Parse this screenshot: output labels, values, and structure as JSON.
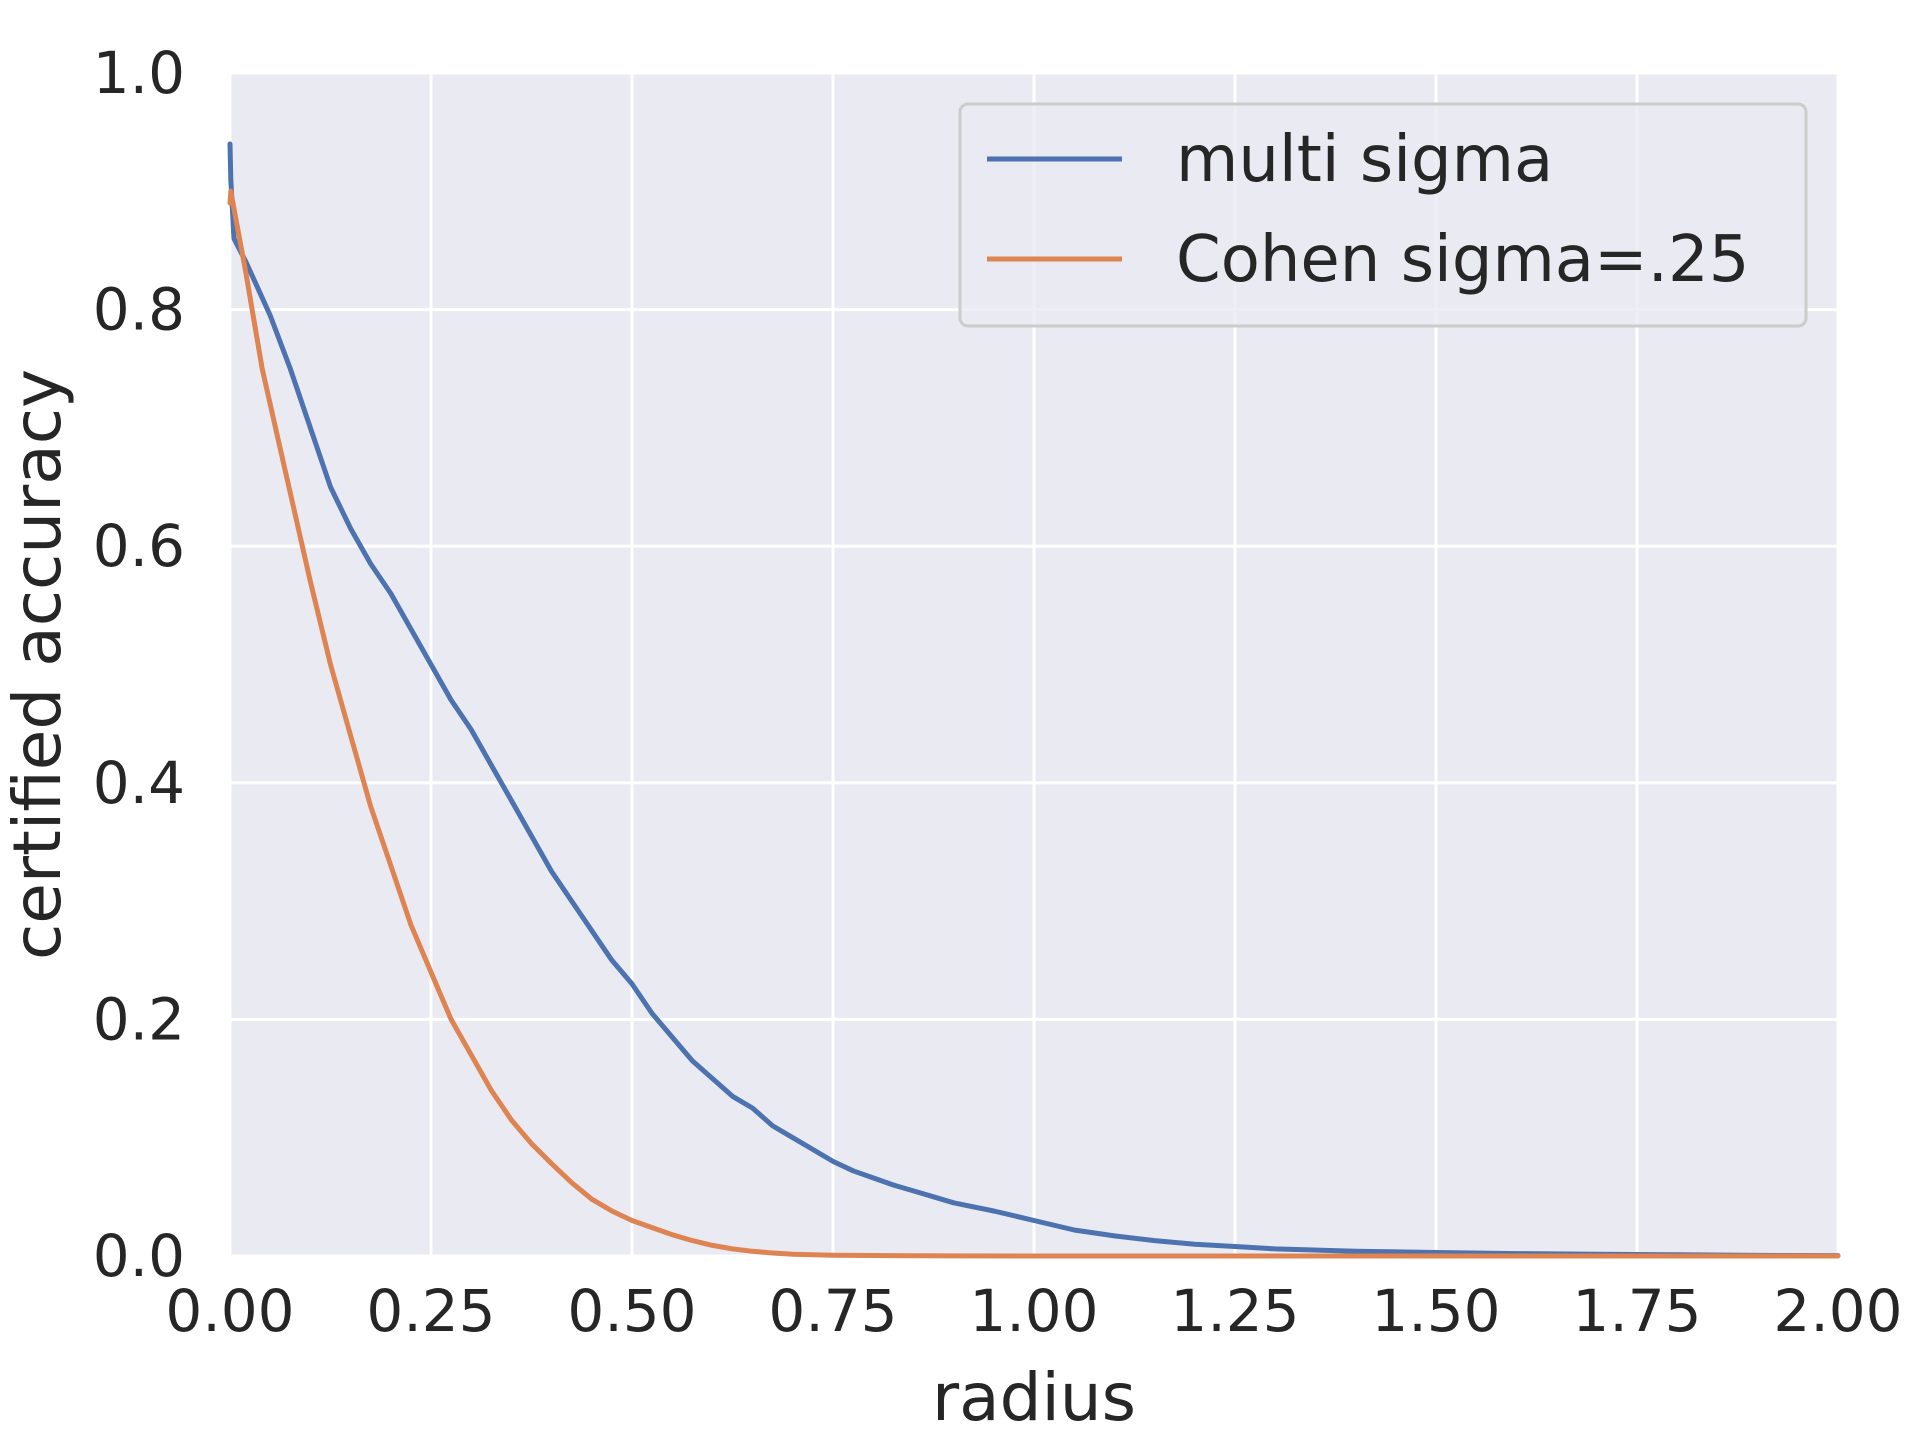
{
  "chart_data": {
    "type": "line",
    "xlabel": "radius",
    "ylabel": "certified accuracy",
    "xlim": [
      0,
      2
    ],
    "ylim": [
      0,
      1
    ],
    "xticks": [
      "0.00",
      "0.25",
      "0.50",
      "0.75",
      "1.00",
      "1.25",
      "1.50",
      "1.75",
      "2.00"
    ],
    "yticks": [
      "0.0",
      "0.2",
      "0.4",
      "0.6",
      "0.8",
      "1.0"
    ],
    "grid": true,
    "legend": "top-right",
    "background": "#eaeaf2",
    "series": [
      {
        "name": "multi sigma",
        "color": "#4c72b0",
        "x": [
          0,
          0.001,
          0.005,
          0.02,
          0.04,
          0.05,
          0.075,
          0.1,
          0.125,
          0.15,
          0.175,
          0.2,
          0.225,
          0.25,
          0.275,
          0.3,
          0.325,
          0.35,
          0.375,
          0.4,
          0.425,
          0.45,
          0.475,
          0.5,
          0.525,
          0.55,
          0.575,
          0.6,
          0.625,
          0.65,
          0.675,
          0.7,
          0.725,
          0.75,
          0.775,
          0.8,
          0.825,
          0.85,
          0.875,
          0.9,
          0.95,
          1.0,
          1.05,
          1.1,
          1.15,
          1.2,
          1.25,
          1.3,
          1.4,
          1.5,
          1.6,
          1.7,
          1.8,
          1.9,
          2.0
        ],
        "y": [
          0.94,
          0.91,
          0.86,
          0.84,
          0.81,
          0.795,
          0.75,
          0.7,
          0.65,
          0.615,
          0.585,
          0.56,
          0.53,
          0.5,
          0.47,
          0.445,
          0.415,
          0.385,
          0.355,
          0.325,
          0.3,
          0.275,
          0.25,
          0.23,
          0.205,
          0.185,
          0.165,
          0.15,
          0.135,
          0.125,
          0.11,
          0.1,
          0.09,
          0.08,
          0.072,
          0.066,
          0.06,
          0.055,
          0.05,
          0.045,
          0.038,
          0.03,
          0.022,
          0.017,
          0.013,
          0.01,
          0.008,
          0.006,
          0.004,
          0.003,
          0.002,
          0.0015,
          0.001,
          0.0005,
          0.0003
        ]
      },
      {
        "name": "Cohen sigma=.25",
        "color": "#dd8452",
        "x": [
          0,
          0.001,
          0.02,
          0.04,
          0.06,
          0.08,
          0.1,
          0.125,
          0.15,
          0.175,
          0.2,
          0.225,
          0.25,
          0.275,
          0.3,
          0.325,
          0.35,
          0.375,
          0.4,
          0.425,
          0.45,
          0.475,
          0.5,
          0.525,
          0.55,
          0.575,
          0.6,
          0.625,
          0.65,
          0.675,
          0.7,
          0.725,
          0.75,
          0.8,
          0.85,
          0.9,
          1.0,
          1.25,
          1.5,
          2.0
        ],
        "y": [
          0.89,
          0.9,
          0.83,
          0.75,
          0.69,
          0.63,
          0.57,
          0.5,
          0.44,
          0.38,
          0.33,
          0.28,
          0.24,
          0.2,
          0.17,
          0.14,
          0.115,
          0.095,
          0.078,
          0.062,
          0.048,
          0.038,
          0.03,
          0.024,
          0.018,
          0.013,
          0.009,
          0.006,
          0.004,
          0.0025,
          0.0015,
          0.001,
          0.0007,
          0.0004,
          0.0002,
          0.0001,
          0.0,
          0.0,
          0.0,
          0.0
        ]
      }
    ]
  }
}
